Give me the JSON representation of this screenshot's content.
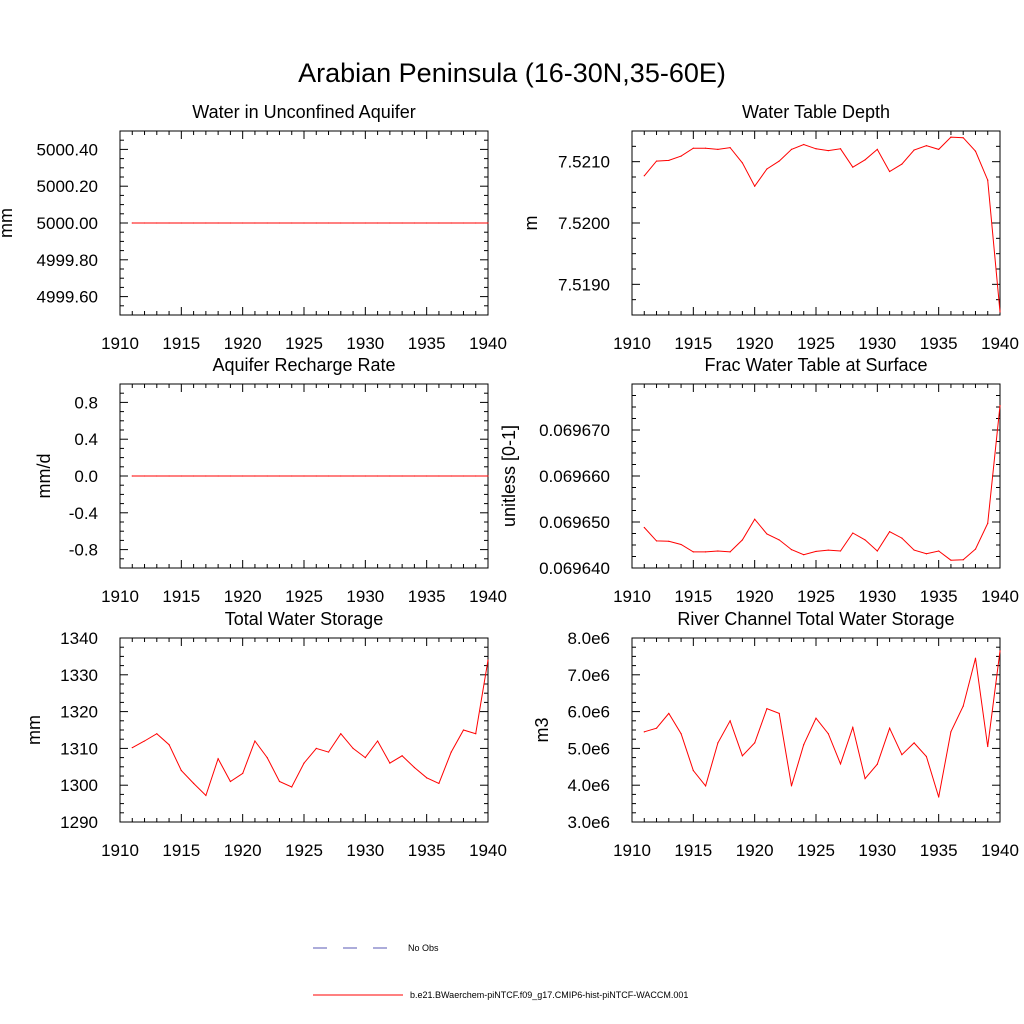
{
  "title": "Arabian Peninsula (16-30N,35-60E)",
  "colors": {
    "model": "#ff0000",
    "obs": "#5a5ab4",
    "frame": "#000000"
  },
  "legend": {
    "obs_label": "No Obs",
    "model_label": "b.e21.BWaerchem-piNTCF.f09_g17.CMIP6-hist-piNTCF-WACCM.001"
  },
  "chart_data": [
    {
      "type": "line",
      "title": "Water in Unconfined Aquifer",
      "ylabel": "mm",
      "xlim": [
        1910,
        1940
      ],
      "ylim": [
        4999.5,
        5000.5
      ],
      "xticks": [
        1910,
        1915,
        1920,
        1925,
        1930,
        1935,
        1940
      ],
      "xtick_labels": [
        "1910",
        "1915",
        "1920",
        "1925",
        "1930",
        "1935",
        "1940"
      ],
      "yticks": [
        4999.6,
        4999.8,
        5000.0,
        5000.2,
        5000.4
      ],
      "ytick_labels": [
        "4999.60",
        "4999.80",
        "5000.00",
        "5000.20",
        "5000.40"
      ],
      "x": [
        1911,
        1912,
        1913,
        1914,
        1915,
        1916,
        1917,
        1918,
        1919,
        1920,
        1921,
        1922,
        1923,
        1924,
        1925,
        1926,
        1927,
        1928,
        1929,
        1930,
        1931,
        1932,
        1933,
        1934,
        1935,
        1936,
        1937,
        1938,
        1939,
        1940
      ],
      "series": [
        {
          "values": [
            5000,
            5000,
            5000,
            5000,
            5000,
            5000,
            5000,
            5000,
            5000,
            5000,
            5000,
            5000,
            5000,
            5000,
            5000,
            5000,
            5000,
            5000,
            5000,
            5000,
            5000,
            5000,
            5000,
            5000,
            5000,
            5000,
            5000,
            5000,
            5000,
            5000
          ]
        }
      ]
    },
    {
      "type": "line",
      "title": "Water Table Depth",
      "ylabel": "m",
      "xlim": [
        1910,
        1940
      ],
      "ylim": [
        7.5185,
        7.5215
      ],
      "xticks": [
        1910,
        1915,
        1920,
        1925,
        1930,
        1935,
        1940
      ],
      "xtick_labels": [
        "1910",
        "1915",
        "1920",
        "1925",
        "1930",
        "1935",
        "1940"
      ],
      "yticks": [
        7.519,
        7.52,
        7.521
      ],
      "ytick_labels": [
        "7.5190",
        "7.5200",
        "7.5210"
      ],
      "x": [
        1911,
        1912,
        1913,
        1914,
        1915,
        1916,
        1917,
        1918,
        1919,
        1920,
        1921,
        1922,
        1923,
        1924,
        1925,
        1926,
        1927,
        1928,
        1929,
        1930,
        1931,
        1932,
        1933,
        1934,
        1935,
        1936,
        1937,
        1938,
        1939,
        1940
      ],
      "series": [
        {
          "values": [
            7.52077,
            7.52101,
            7.52102,
            7.52109,
            7.52122,
            7.52122,
            7.5212,
            7.52123,
            7.52098,
            7.5206,
            7.52088,
            7.52101,
            7.5212,
            7.52128,
            7.52121,
            7.52118,
            7.52121,
            7.52091,
            7.52103,
            7.5212,
            7.52084,
            7.52096,
            7.52119,
            7.52126,
            7.5212,
            7.5214,
            7.52139,
            7.52117,
            7.5207,
            7.51855
          ]
        }
      ]
    },
    {
      "type": "line",
      "title": "Aquifer Recharge Rate",
      "ylabel": "mm/d",
      "xlim": [
        1910,
        1940
      ],
      "ylim": [
        -1.0,
        1.0
      ],
      "xticks": [
        1910,
        1915,
        1920,
        1925,
        1930,
        1935,
        1940
      ],
      "xtick_labels": [
        "1910",
        "1915",
        "1920",
        "1925",
        "1930",
        "1935",
        "1940"
      ],
      "yticks": [
        -0.8,
        -0.4,
        0.0,
        0.4,
        0.8
      ],
      "ytick_labels": [
        "-0.8",
        "-0.4",
        "0.0",
        "0.4",
        "0.8"
      ],
      "x": [
        1911,
        1912,
        1913,
        1914,
        1915,
        1916,
        1917,
        1918,
        1919,
        1920,
        1921,
        1922,
        1923,
        1924,
        1925,
        1926,
        1927,
        1928,
        1929,
        1930,
        1931,
        1932,
        1933,
        1934,
        1935,
        1936,
        1937,
        1938,
        1939,
        1940
      ],
      "series": [
        {
          "values": [
            0,
            0,
            0,
            0,
            0,
            0,
            0,
            0,
            0,
            0,
            0,
            0,
            0,
            0,
            0,
            0,
            0,
            0,
            0,
            0,
            0,
            0,
            0,
            0,
            0,
            0,
            0,
            0,
            0,
            0
          ]
        }
      ]
    },
    {
      "type": "line",
      "title": "Frac Water Table at Surface",
      "ylabel": "unitless [0-1]",
      "xlim": [
        1910,
        1940
      ],
      "ylim": [
        0.06964,
        0.06968
      ],
      "xticks": [
        1910,
        1915,
        1920,
        1925,
        1930,
        1935,
        1940
      ],
      "xtick_labels": [
        "1910",
        "1915",
        "1920",
        "1925",
        "1930",
        "1935",
        "1940"
      ],
      "yticks": [
        0.06964,
        0.06965,
        0.06966,
        0.06967
      ],
      "ytick_labels": [
        "0.069640",
        "0.069650",
        "0.069660",
        "0.069670"
      ],
      "x": [
        1911,
        1912,
        1913,
        1914,
        1915,
        1916,
        1917,
        1918,
        1919,
        1920,
        1921,
        1922,
        1923,
        1924,
        1925,
        1926,
        1927,
        1928,
        1929,
        1930,
        1931,
        1932,
        1933,
        1934,
        1935,
        1936,
        1937,
        1938,
        1939,
        1940
      ],
      "series": [
        {
          "values": [
            0.0696488,
            0.0696459,
            0.0696458,
            0.0696451,
            0.0696435,
            0.0696435,
            0.0696437,
            0.0696435,
            0.0696461,
            0.0696506,
            0.0696474,
            0.0696461,
            0.069644,
            0.0696429,
            0.0696436,
            0.0696439,
            0.0696437,
            0.0696476,
            0.0696461,
            0.0696437,
            0.0696479,
            0.0696465,
            0.0696439,
            0.0696431,
            0.0696437,
            0.0696417,
            0.0696418,
            0.0696441,
            0.0696497,
            0.0696753
          ]
        }
      ]
    },
    {
      "type": "line",
      "title": "Total Water Storage",
      "ylabel": "mm",
      "xlim": [
        1910,
        1940
      ],
      "ylim": [
        1290,
        1340
      ],
      "xticks": [
        1910,
        1915,
        1920,
        1925,
        1930,
        1935,
        1940
      ],
      "xtick_labels": [
        "1910",
        "1915",
        "1920",
        "1925",
        "1930",
        "1935",
        "1940"
      ],
      "yticks": [
        1290,
        1300,
        1310,
        1320,
        1330,
        1340
      ],
      "ytick_labels": [
        "1290",
        "1300",
        "1310",
        "1320",
        "1330",
        "1340"
      ],
      "x": [
        1911,
        1912,
        1913,
        1914,
        1915,
        1916,
        1917,
        1918,
        1919,
        1920,
        1921,
        1922,
        1923,
        1924,
        1925,
        1926,
        1927,
        1928,
        1929,
        1930,
        1931,
        1932,
        1933,
        1934,
        1935,
        1936,
        1937,
        1938,
        1939,
        1940
      ],
      "series": [
        {
          "values": [
            1310.2,
            1312.0,
            1314.0,
            1311.0,
            1304.0,
            1300.5,
            1297.2,
            1307.2,
            1301.0,
            1303.2,
            1312.0,
            1307.5,
            1301.0,
            1299.5,
            1306.0,
            1310.0,
            1309.0,
            1314.0,
            1310.0,
            1307.5,
            1312.0,
            1306.0,
            1308.0,
            1304.8,
            1302.0,
            1300.5,
            1309.0,
            1315.0,
            1314.0,
            1334.0
          ]
        }
      ]
    },
    {
      "type": "line",
      "title": "River Channel Total Water Storage",
      "ylabel": "m3",
      "xlim": [
        1910,
        1940
      ],
      "ylim": [
        3000000,
        8000000
      ],
      "xticks": [
        1910,
        1915,
        1920,
        1925,
        1930,
        1935,
        1940
      ],
      "xtick_labels": [
        "1910",
        "1915",
        "1920",
        "1925",
        "1930",
        "1935",
        "1940"
      ],
      "yticks": [
        3000000,
        4000000,
        5000000,
        6000000,
        7000000,
        8000000
      ],
      "ytick_labels": [
        "3.0e6",
        "4.0e6",
        "5.0e6",
        "6.0e6",
        "7.0e6",
        "8.0e6"
      ],
      "x": [
        1911,
        1912,
        1913,
        1914,
        1915,
        1916,
        1917,
        1918,
        1919,
        1920,
        1921,
        1922,
        1923,
        1924,
        1925,
        1926,
        1927,
        1928,
        1929,
        1930,
        1931,
        1932,
        1933,
        1934,
        1935,
        1936,
        1937,
        1938,
        1939,
        1940
      ],
      "series": [
        {
          "values": [
            5450000,
            5550000,
            5950000,
            5400000,
            4400000,
            3980000,
            5150000,
            5750000,
            4800000,
            5150000,
            6080000,
            5950000,
            3980000,
            5100000,
            5820000,
            5400000,
            4580000,
            5570000,
            4180000,
            4570000,
            5550000,
            4830000,
            5150000,
            4780000,
            3680000,
            5450000,
            6150000,
            7450000,
            5050000,
            7650000
          ]
        }
      ]
    }
  ]
}
